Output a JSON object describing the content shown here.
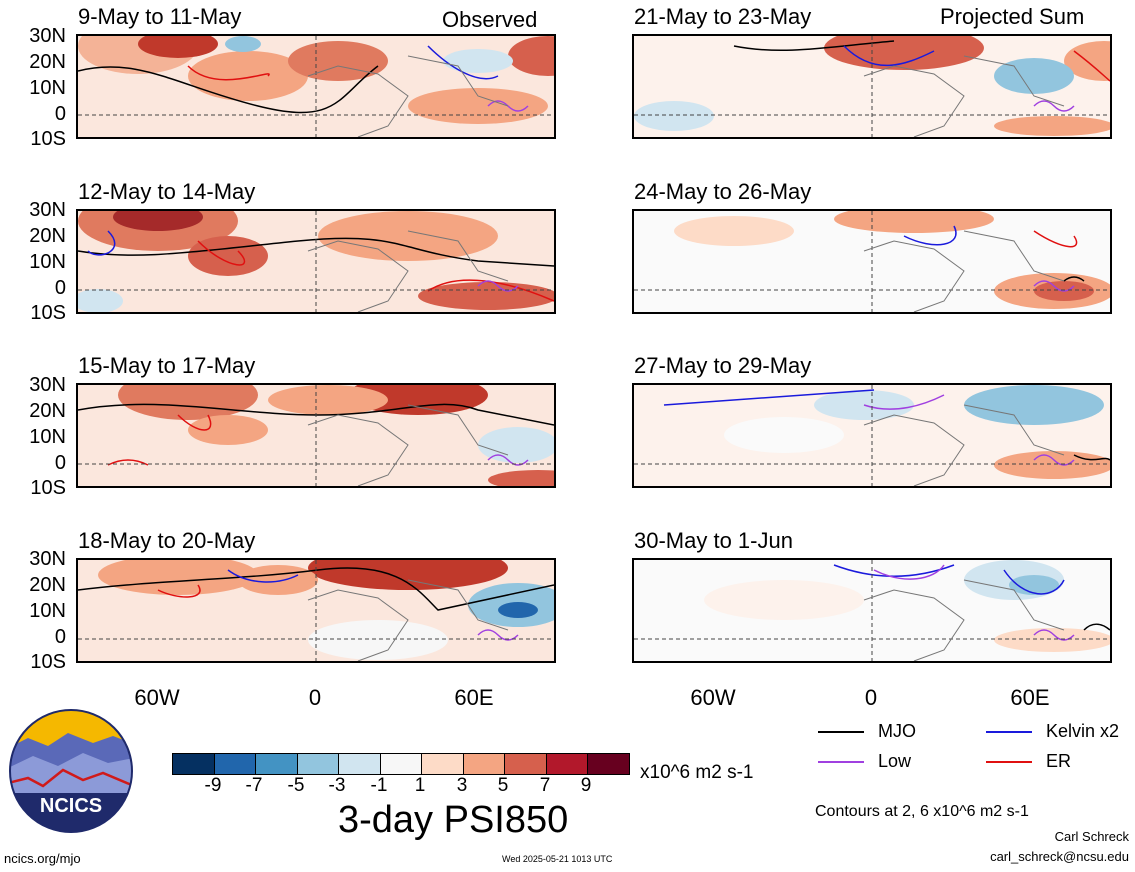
{
  "columns": {
    "left_label": "Observed",
    "right_label": "Projected Sum"
  },
  "panels_left": [
    {
      "title": "9-May to 11-May"
    },
    {
      "title": "12-May to 14-May"
    },
    {
      "title": "15-May to 17-May"
    },
    {
      "title": "18-May to 20-May"
    }
  ],
  "panels_right": [
    {
      "title": "21-May to 23-May"
    },
    {
      "title": "24-May to 26-May"
    },
    {
      "title": "27-May to 29-May"
    },
    {
      "title": "30-May to 1-Jun"
    }
  ],
  "lat_labels": [
    "30N",
    "20N",
    "10N",
    "0",
    "10S"
  ],
  "lon_labels": [
    "60W",
    "0",
    "60E"
  ],
  "colorbar": {
    "unit": "x10^6 m2 s-1",
    "labels": [
      "-9",
      "-7",
      "-5",
      "-3",
      "-1",
      "1",
      "3",
      "5",
      "7",
      "9"
    ],
    "colors": [
      "#053061",
      "#2166ac",
      "#4393c3",
      "#92c5de",
      "#d1e5f0",
      "#f7f7f7",
      "#fddbc7",
      "#f4a582",
      "#d6604d",
      "#b2182b",
      "#67001f"
    ],
    "title": "3-day PSI850"
  },
  "legend": {
    "items": [
      {
        "label": "MJO",
        "color": "#000000"
      },
      {
        "label": "Kelvin x2",
        "color": "#1a1adc"
      },
      {
        "label": "Low",
        "color": "#a040e0"
      },
      {
        "label": "ER",
        "color": "#e01010"
      }
    ],
    "contours_note": "Contours at 2, 6 x10^6 m2 s-1"
  },
  "logo": {
    "text": "NCICS"
  },
  "footer": {
    "url": "ncics.org/mjo",
    "timestamp": "Wed 2025-05-21 1013 UTC",
    "author": "Carl Schreck",
    "email": "carl_schreck@ncsu.edu"
  }
}
